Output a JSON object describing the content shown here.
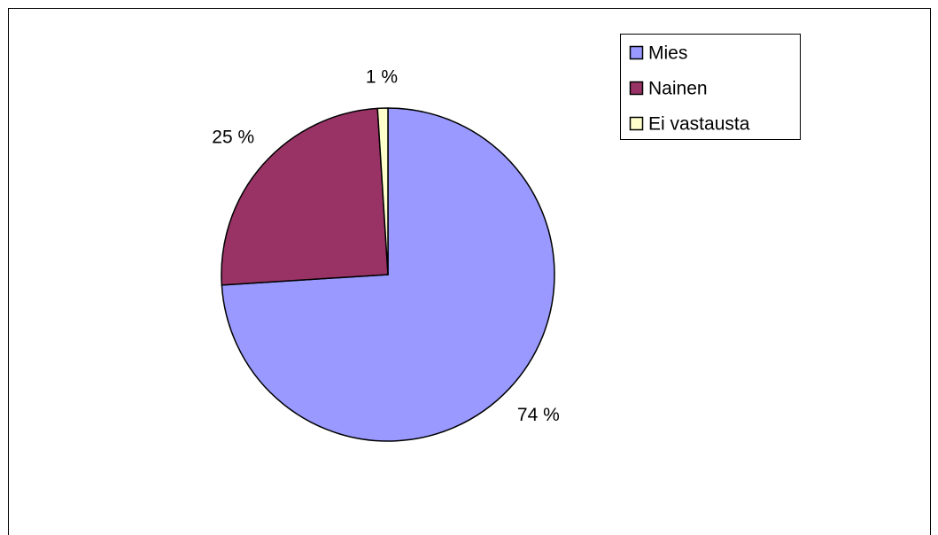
{
  "chart_data": {
    "type": "pie",
    "categories": [
      "Mies",
      "Nainen",
      "Ei vastausta"
    ],
    "values": [
      74,
      25,
      1
    ],
    "value_labels": [
      "74 %",
      "25 %",
      "1 %"
    ],
    "colors": [
      "#9999ff",
      "#993366",
      "#ffffcc"
    ]
  }
}
